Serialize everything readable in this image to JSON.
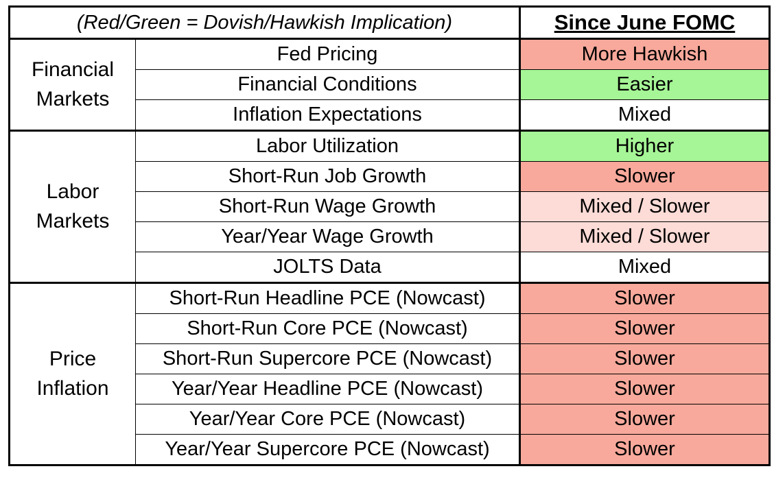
{
  "header": {
    "note": "(Red/Green = Dovish/Hawkish Implication)",
    "period": "Since June FOMC"
  },
  "colors": {
    "red_strong": "#f8a99b",
    "red_light": "#fddbd6",
    "green": "#a6f596",
    "white": "#ffffff"
  },
  "groups": [
    {
      "category": "Financial Markets",
      "rows": [
        {
          "metric": "Fed Pricing",
          "value": "More Hawkish",
          "color": "red_strong"
        },
        {
          "metric": "Financial Conditions",
          "value": "Easier",
          "color": "green"
        },
        {
          "metric": "Inflation Expectations",
          "value": "Mixed",
          "color": "white"
        }
      ]
    },
    {
      "category": "Labor Markets",
      "rows": [
        {
          "metric": "Labor Utilization",
          "value": "Higher",
          "color": "green"
        },
        {
          "metric": "Short-Run Job Growth",
          "value": "Slower",
          "color": "red_strong"
        },
        {
          "metric": "Short-Run Wage Growth",
          "value": "Mixed / Slower",
          "color": "red_light"
        },
        {
          "metric": "Year/Year Wage Growth",
          "value": "Mixed / Slower",
          "color": "red_light"
        },
        {
          "metric": "JOLTS Data",
          "value": "Mixed",
          "color": "white"
        }
      ]
    },
    {
      "category": "Price Inflation",
      "rows": [
        {
          "metric": "Short-Run Headline PCE (Nowcast)",
          "value": "Slower",
          "color": "red_strong"
        },
        {
          "metric": "Short-Run Core PCE (Nowcast)",
          "value": "Slower",
          "color": "red_strong"
        },
        {
          "metric": "Short-Run Supercore PCE (Nowcast)",
          "value": "Slower",
          "color": "red_strong"
        },
        {
          "metric": "Year/Year Headline PCE (Nowcast)",
          "value": "Slower",
          "color": "red_strong"
        },
        {
          "metric": "Year/Year Core PCE (Nowcast)",
          "value": "Slower",
          "color": "red_strong"
        },
        {
          "metric": "Year/Year Supercore PCE (Nowcast)",
          "value": "Slower",
          "color": "red_strong"
        }
      ]
    }
  ]
}
